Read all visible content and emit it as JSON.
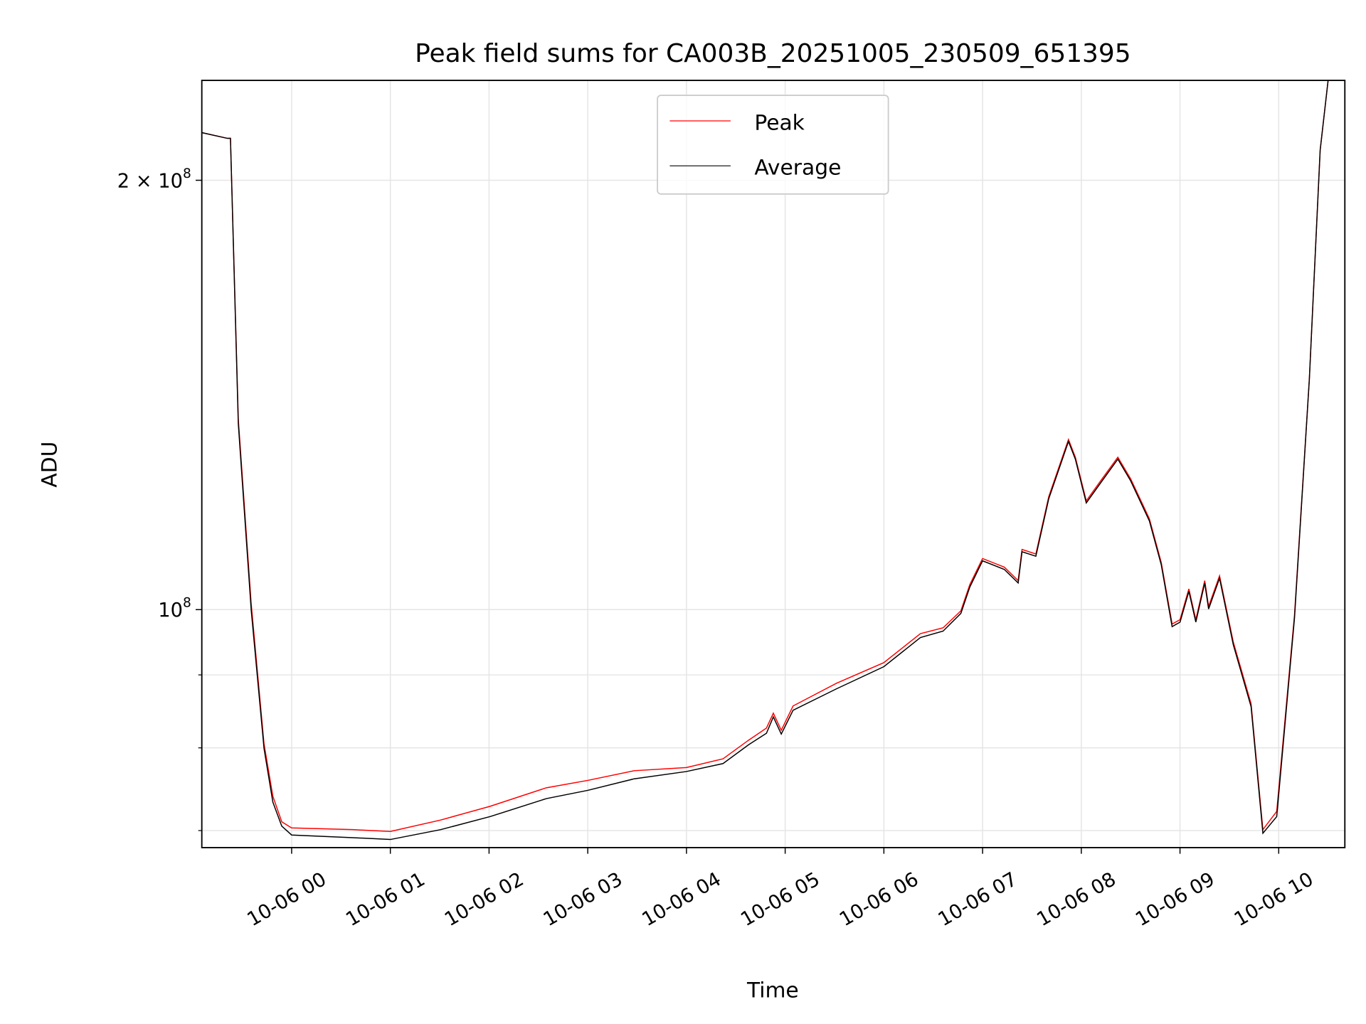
{
  "chart_data": {
    "type": "line",
    "title": "Peak field sums for CA003B_20251005_230509_651395",
    "xlabel": "Time",
    "ylabel": "ADU",
    "yscale": "log",
    "xlim_hours_from_10-06_00": [
      -0.91,
      10.67
    ],
    "ylim": [
      68100000,
      235000000
    ],
    "grid": true,
    "legend_placement": "upper center",
    "x_ticks": [
      {
        "h": 0,
        "label": "10-06 00"
      },
      {
        "h": 1,
        "label": "10-06 01"
      },
      {
        "h": 2,
        "label": "10-06 02"
      },
      {
        "h": 3,
        "label": "10-06 03"
      },
      {
        "h": 4,
        "label": "10-06 04"
      },
      {
        "h": 5,
        "label": "10-06 05"
      },
      {
        "h": 6,
        "label": "10-06 06"
      },
      {
        "h": 7,
        "label": "10-06 07"
      },
      {
        "h": 8,
        "label": "10-06 08"
      },
      {
        "h": 9,
        "label": "10-06 09"
      },
      {
        "h": 10,
        "label": "10-06 10"
      }
    ],
    "y_ticks_major": [
      {
        "v": 100000000,
        "base": "10",
        "exp": "8",
        "mult": ""
      },
      {
        "v": 200000000,
        "base": "10",
        "exp": "8",
        "mult": "2 × "
      }
    ],
    "y_ticks_minor": [
      70000000,
      80000000,
      90000000
    ],
    "x_hours": [
      -0.91,
      -0.65,
      -0.62,
      -0.54,
      -0.41,
      -0.28,
      -0.19,
      -0.1,
      0,
      0.62,
      1.0,
      1.51,
      2.01,
      2.58,
      3.0,
      3.47,
      4.0,
      4.37,
      4.63,
      4.81,
      4.88,
      4.96,
      5.08,
      5.52,
      6.0,
      6.37,
      6.6,
      6.78,
      6.87,
      7.0,
      7.22,
      7.36,
      7.4,
      7.54,
      7.67,
      7.87,
      7.94,
      8.05,
      8.21,
      8.37,
      8.5,
      8.69,
      8.81,
      8.92,
      9.0,
      9.09,
      9.16,
      9.25,
      9.29,
      9.4,
      9.54,
      9.63,
      9.72,
      9.84,
      9.98,
      10.16,
      10.31,
      10.42,
      10.5
    ],
    "series": [
      {
        "name": "Peak",
        "color": "#ff0000",
        "values_1e8": [
          2.16,
          2.14,
          2.14,
          1.36,
          1.01,
          0.805,
          0.74,
          0.71,
          0.703,
          0.701,
          0.699,
          0.712,
          0.728,
          0.75,
          0.759,
          0.771,
          0.775,
          0.786,
          0.81,
          0.826,
          0.846,
          0.823,
          0.856,
          0.888,
          0.918,
          0.962,
          0.971,
          0.998,
          1.041,
          1.086,
          1.071,
          1.048,
          1.102,
          1.094,
          1.2,
          1.316,
          1.279,
          1.192,
          1.235,
          1.279,
          1.235,
          1.158,
          1.079,
          0.977,
          0.984,
          1.034,
          0.984,
          1.048,
          1.005,
          1.056,
          0.949,
          0.903,
          0.859,
          0.701,
          0.722,
          0.992,
          1.45,
          2.1,
          2.35
        ]
      },
      {
        "name": "Average",
        "color": "#000000",
        "values_1e8": [
          2.16,
          2.14,
          2.14,
          1.35,
          1.0,
          0.799,
          0.733,
          0.705,
          0.695,
          0.692,
          0.69,
          0.701,
          0.716,
          0.737,
          0.747,
          0.761,
          0.77,
          0.78,
          0.804,
          0.819,
          0.841,
          0.818,
          0.85,
          0.88,
          0.912,
          0.956,
          0.966,
          0.994,
          1.037,
          1.082,
          1.067,
          1.044,
          1.098,
          1.09,
          1.196,
          1.312,
          1.275,
          1.188,
          1.231,
          1.275,
          1.231,
          1.154,
          1.075,
          0.973,
          0.98,
          1.03,
          0.98,
          1.044,
          1.001,
          1.052,
          0.945,
          0.899,
          0.855,
          0.697,
          0.716,
          0.987,
          1.45,
          2.1,
          2.35
        ]
      }
    ]
  }
}
